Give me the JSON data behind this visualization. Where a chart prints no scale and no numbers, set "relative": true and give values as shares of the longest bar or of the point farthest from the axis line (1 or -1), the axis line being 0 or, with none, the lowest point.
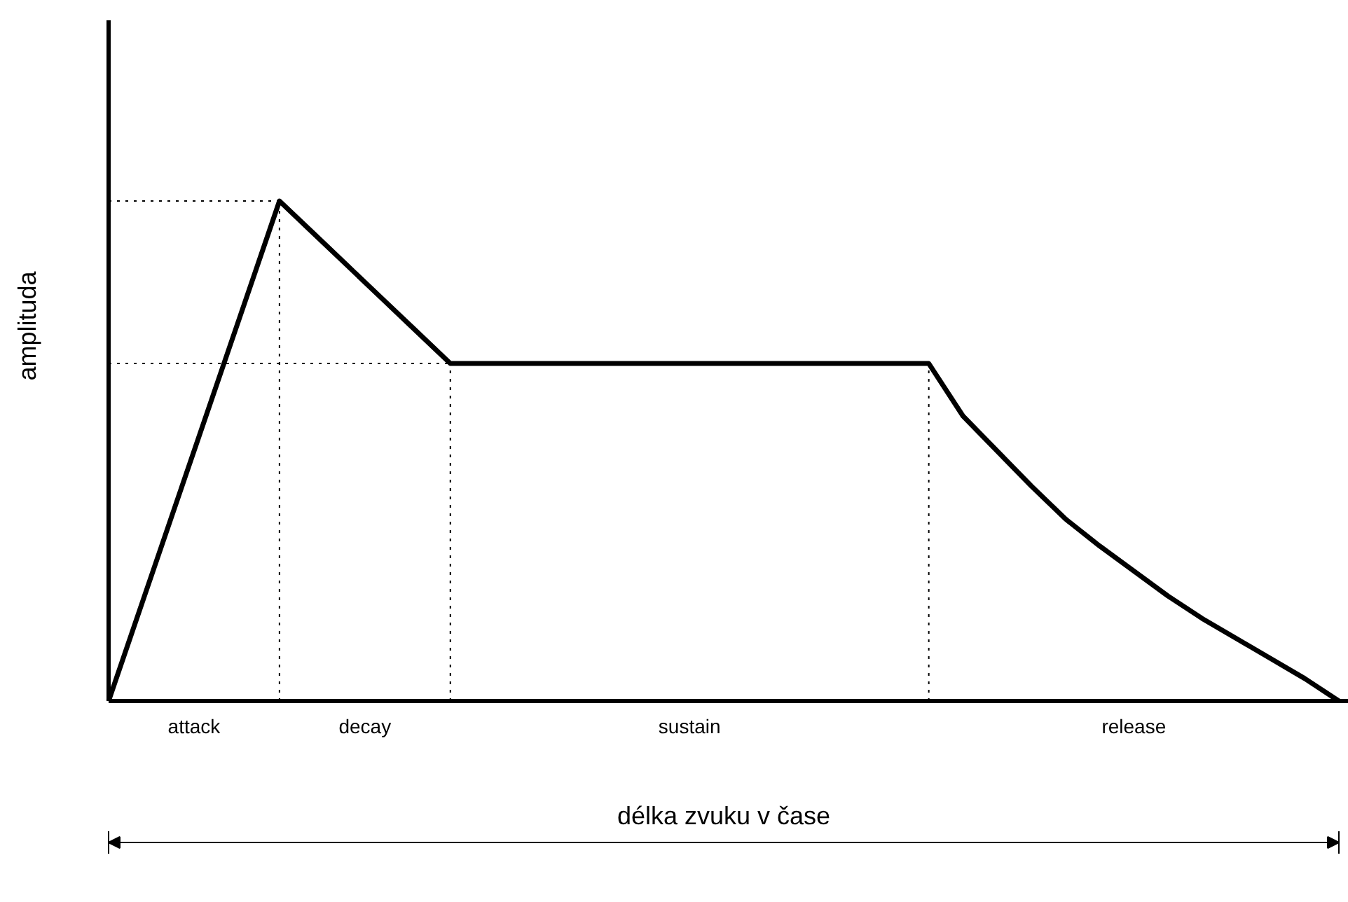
{
  "chart_data": {
    "type": "line",
    "relative": true,
    "xlabel": "délka zvuku v čase",
    "ylabel": "amplituda",
    "categories": [
      null,
      null,
      null,
      null,
      null,
      null,
      null,
      null,
      null,
      null,
      null,
      null,
      null,
      null,
      null,
      null,
      null,
      null,
      null,
      null,
      null,
      null,
      null,
      null,
      null,
      null,
      null,
      null,
      null,
      null,
      null,
      null,
      null,
      null,
      null,
      null,
      null
    ],
    "series": [
      {
        "color": "#000000",
        "values": [
          0,
          0.2,
          0.4,
          0.6,
          0.8,
          1,
          0.935,
          0.87,
          0.805,
          0.74,
          0.675,
          0.675,
          0.675,
          0.675,
          0.675,
          0.675,
          0.675,
          0.675,
          0.675,
          0.675,
          0.675,
          0.675,
          0.675,
          0.675,
          0.675,
          0.57,
          0.5,
          0.43,
          0.364,
          0.31,
          0.26,
          0.21,
          0.165,
          0.125,
          0.085,
          0.045,
          0
        ]
      }
    ],
    "annotations": [
      "attack",
      "decay",
      "sustain",
      "release"
    ],
    "ref_lines": [
      {
        "axis": "y",
        "value": 1,
        "line_style": "dotted"
      },
      {
        "axis": "y",
        "value": 0.675,
        "line_style": "dotted"
      }
    ],
    "grid": false,
    "marker": "none",
    "line_style": "solid"
  }
}
